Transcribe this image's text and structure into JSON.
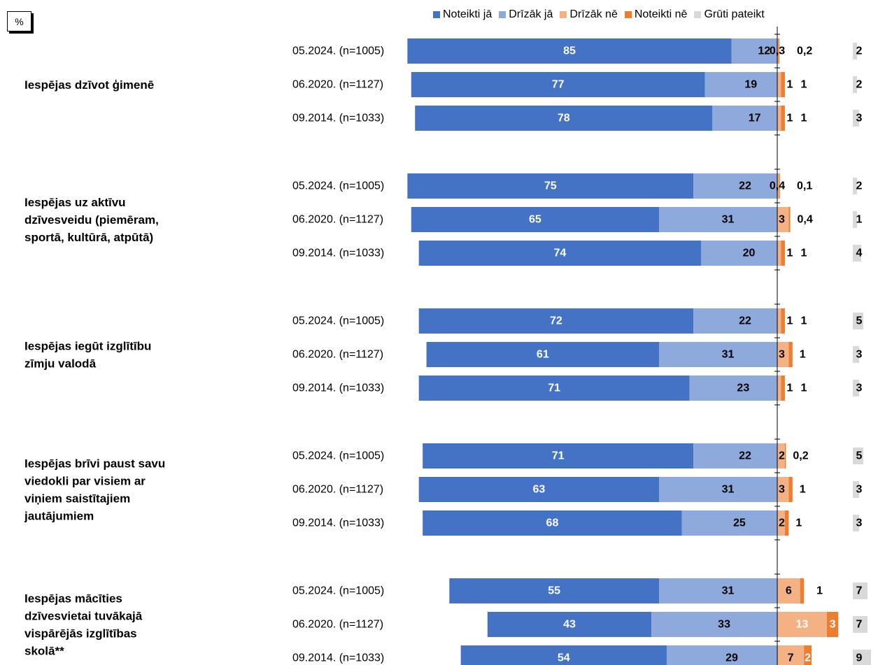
{
  "unit_label": "%",
  "chart_data": {
    "type": "bar",
    "stacked": true,
    "orientation": "horizontal",
    "diverging": true,
    "legend_position": "top",
    "series": [
      {
        "name": "Noteikti jā",
        "color": "#4472C4"
      },
      {
        "name": "Drīzāk jā",
        "color": "#8EA9DB"
      },
      {
        "name": "Drīzāk nē",
        "color": "#F4B183"
      },
      {
        "name": "Noteikti nē",
        "color": "#ED7D31"
      },
      {
        "name": "Grūti pateikt",
        "color": "#D9D9D9"
      }
    ],
    "groups": [
      {
        "label": "Iespējas dzīvot ģimenē",
        "rows": [
          {
            "wave": "05.2024. (n=1005)",
            "values": [
              85,
              12,
              0.3,
              0.2,
              2
            ],
            "labels": [
              "85",
              "12",
              "0,3",
              "0,2",
              "2"
            ]
          },
          {
            "wave": "06.2020. (n=1127)",
            "values": [
              77,
              19,
              1,
              1,
              2
            ],
            "labels": [
              "77",
              "19",
              "1",
              "1",
              "2"
            ]
          },
          {
            "wave": "09.2014. (n=1033)",
            "values": [
              78,
              17,
              1,
              1,
              3
            ],
            "labels": [
              "78",
              "17",
              "1",
              "1",
              "3"
            ]
          }
        ]
      },
      {
        "label": "Iespējas uz aktīvu dzīvesveidu (piemēram, sportā, kultūrā, atpūtā)",
        "rows": [
          {
            "wave": "05.2024. (n=1005)",
            "values": [
              75,
              22,
              0.4,
              0.1,
              2
            ],
            "labels": [
              "75",
              "22",
              "0,4",
              "0,1",
              "2"
            ]
          },
          {
            "wave": "06.2020. (n=1127)",
            "values": [
              65,
              31,
              3,
              0.4,
              1
            ],
            "labels": [
              "65",
              "31",
              "3",
              "0,4",
              "1"
            ]
          },
          {
            "wave": "09.2014. (n=1033)",
            "values": [
              74,
              20,
              1,
              1,
              4
            ],
            "labels": [
              "74",
              "20",
              "1",
              "1",
              "4"
            ]
          }
        ]
      },
      {
        "label": "Iespējas iegūt izglītību zīmju valodā",
        "rows": [
          {
            "wave": "05.2024. (n=1005)",
            "values": [
              72,
              22,
              1,
              1,
              5
            ],
            "labels": [
              "72",
              "22",
              "1",
              "1",
              "5"
            ]
          },
          {
            "wave": "06.2020. (n=1127)",
            "values": [
              61,
              31,
              3,
              1,
              3
            ],
            "labels": [
              "61",
              "31",
              "3",
              "1",
              "3"
            ]
          },
          {
            "wave": "09.2014. (n=1033)",
            "values": [
              71,
              23,
              1,
              1,
              3
            ],
            "labels": [
              "71",
              "23",
              "1",
              "1",
              "3"
            ]
          }
        ]
      },
      {
        "label": "Iespējas brīvi paust savu viedokli par visiem ar viņiem saistītajiem jautājumiem",
        "rows": [
          {
            "wave": "05.2024. (n=1005)",
            "values": [
              71,
              22,
              2,
              0.2,
              5
            ],
            "labels": [
              "71",
              "22",
              "2",
              "0,2",
              "5"
            ]
          },
          {
            "wave": "06.2020. (n=1127)",
            "values": [
              63,
              31,
              3,
              1,
              3
            ],
            "labels": [
              "63",
              "31",
              "3",
              "1",
              "3"
            ]
          },
          {
            "wave": "09.2014. (n=1033)",
            "values": [
              68,
              25,
              2,
              1,
              3
            ],
            "labels": [
              "68",
              "25",
              "2",
              "1",
              "3"
            ]
          }
        ]
      },
      {
        "label": "Iespējas mācīties dzīvesvietai tuvākajā vispārējās izglītības skolā**",
        "rows": [
          {
            "wave": "05.2024. (n=1005)",
            "values": [
              55,
              31,
              6,
              1,
              7
            ],
            "labels": [
              "55",
              "31",
              "6",
              "1",
              "7"
            ]
          },
          {
            "wave": "06.2020. (n=1127)",
            "values": [
              43,
              33,
              13,
              3,
              7
            ],
            "labels": [
              "43",
              "33",
              "13",
              "3",
              "7"
            ]
          },
          {
            "wave": "09.2014. (n=1033)",
            "values": [
              54,
              29,
              7,
              2,
              9
            ],
            "labels": [
              "54",
              "29",
              "7",
              "2",
              "9"
            ]
          }
        ]
      }
    ]
  }
}
